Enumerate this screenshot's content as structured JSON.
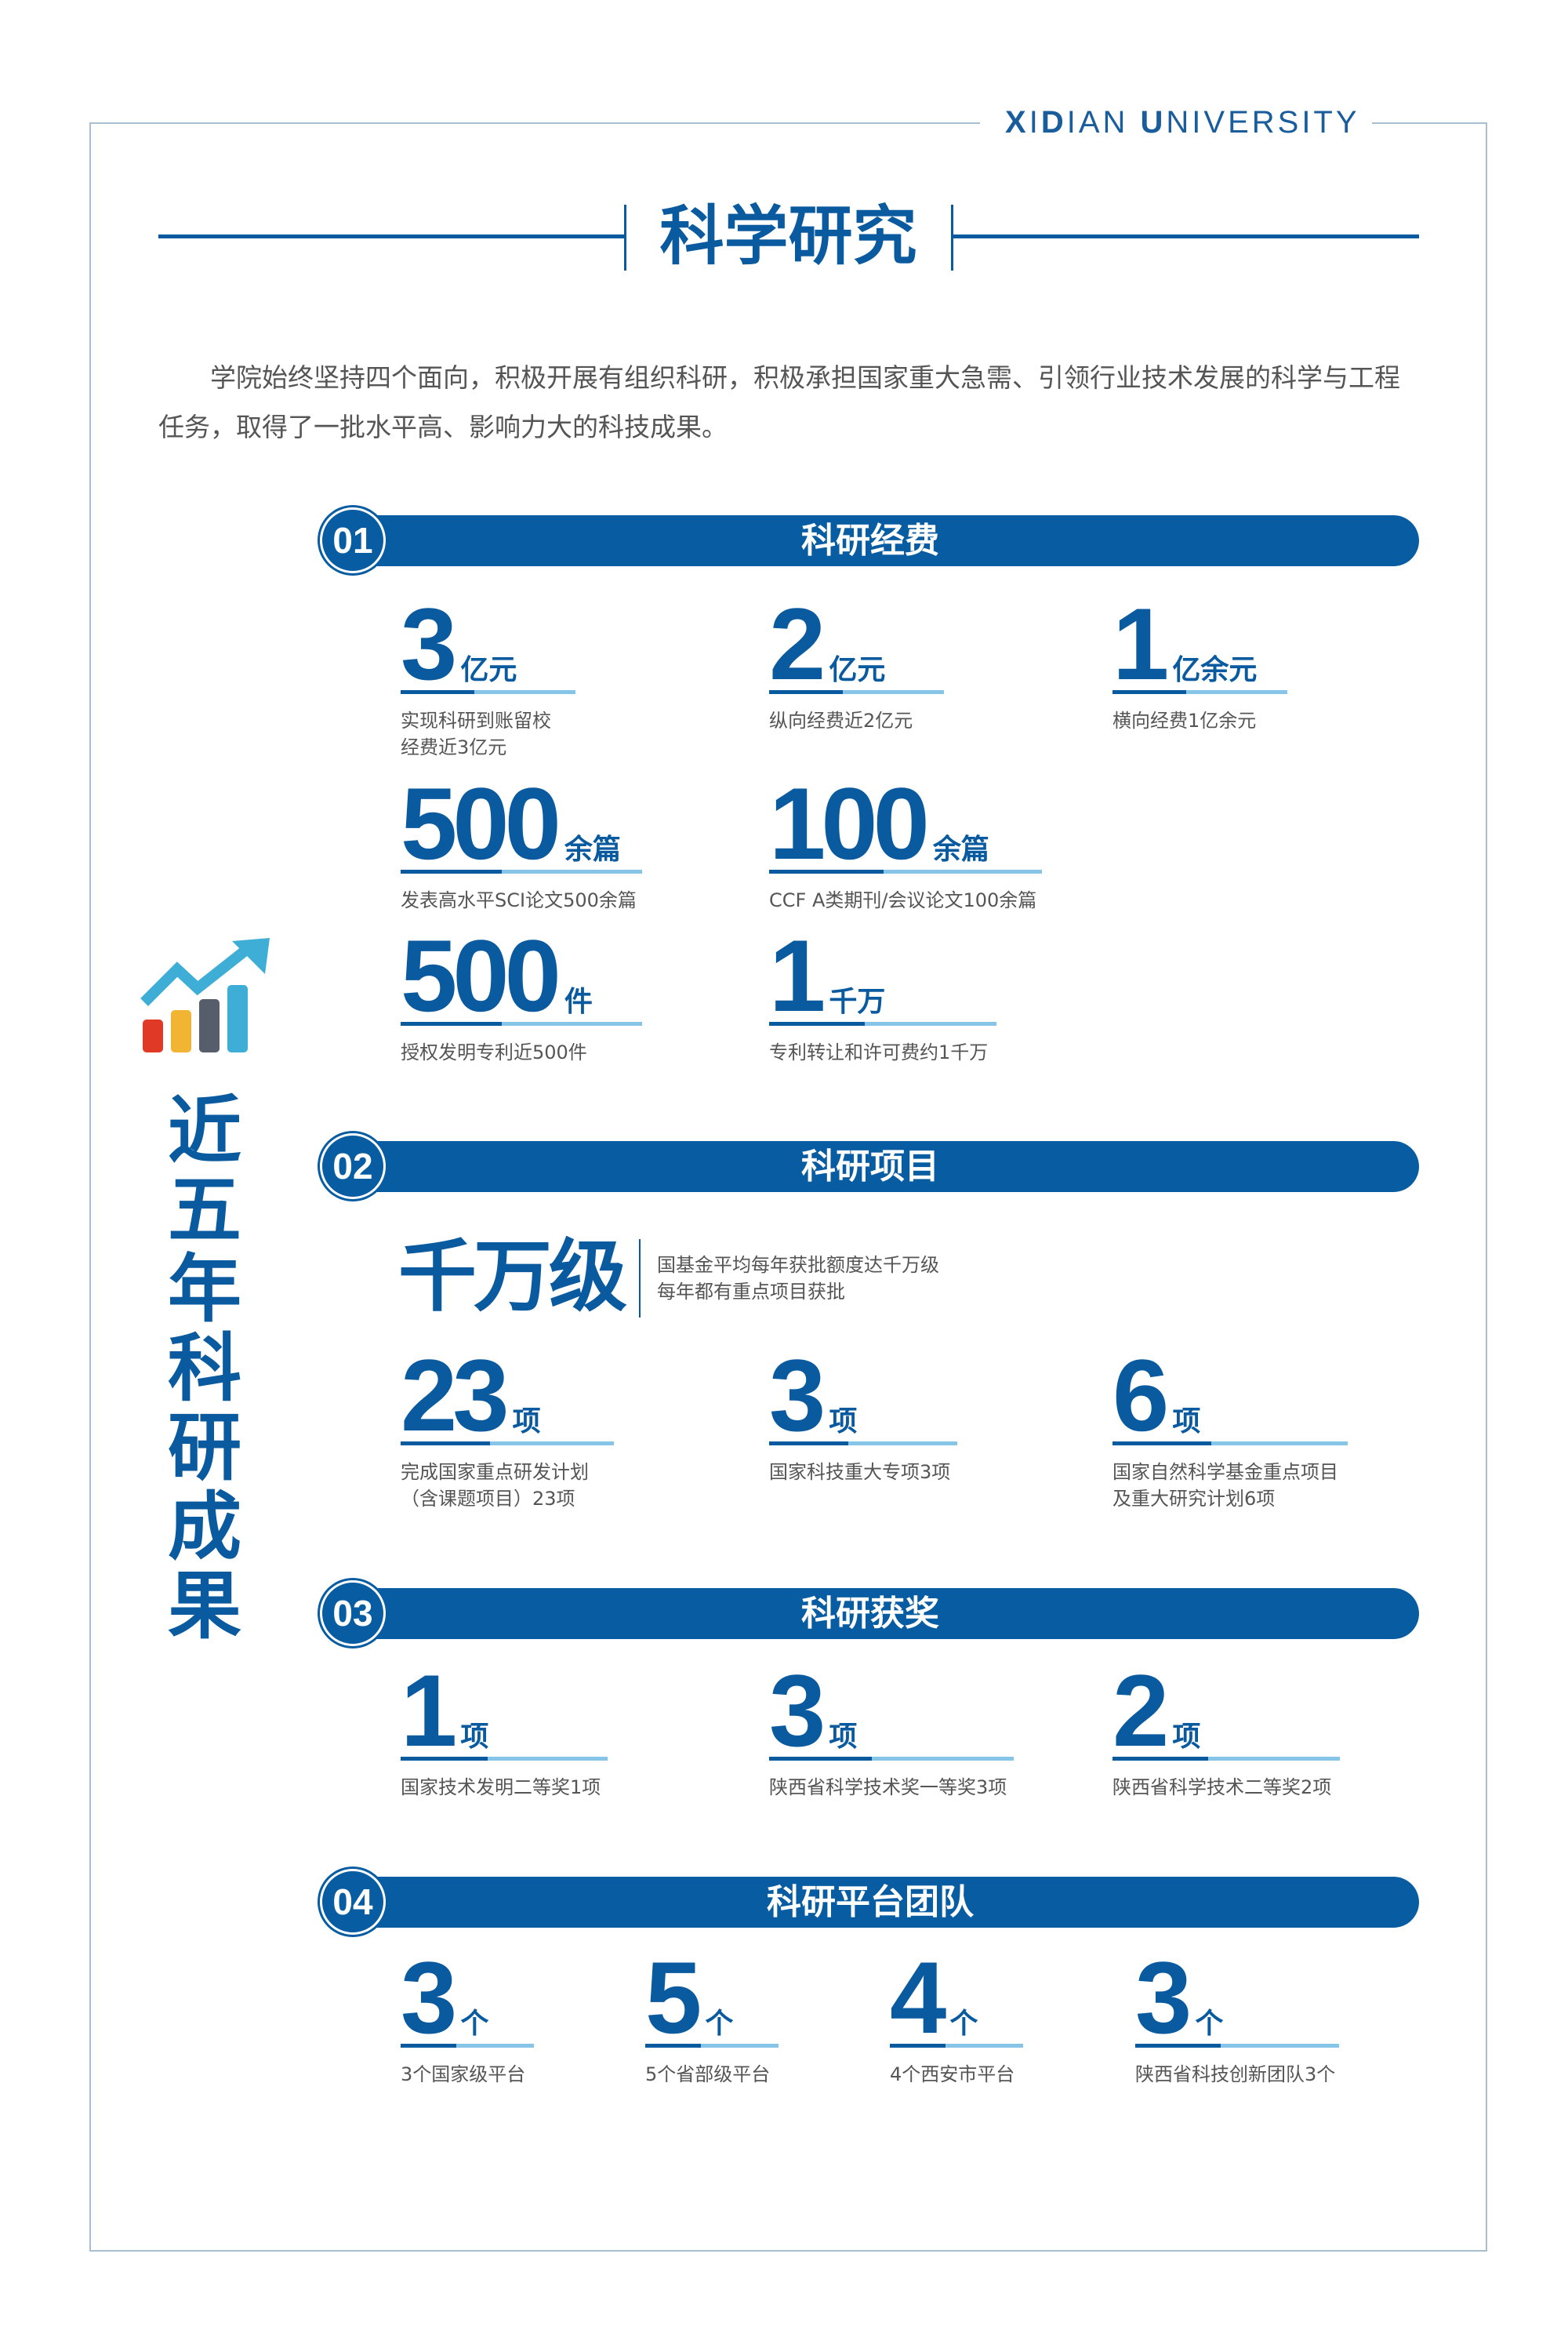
{
  "header": {
    "brand_first": "X",
    "brand_i": "I",
    "brand_d": "D",
    "brand_rest1": "IAN ",
    "brand_u": "U",
    "brand_rest2": "NIVERSITY"
  },
  "title": "科学研究",
  "intro": "学院始终坚持四个面向，积极开展有组织科研，积极承担国家重大急需、引领行业技术发展的科学与工程任务，取得了一批水平高、影响力大的科技成果。",
  "side_title": "近五年科研成果",
  "colors": {
    "primary": "#0a5aa0",
    "accent_light": "#86c4e8",
    "text": "#555555"
  },
  "sections": [
    {
      "num": "01",
      "title": "科研经费",
      "stats": [
        {
          "value": "3",
          "unit": "亿元",
          "desc": [
            "实现科研到账留校",
            "经费近3亿元"
          ]
        },
        {
          "value": "2",
          "unit": "亿元",
          "desc": [
            "纵向经费近2亿元"
          ]
        },
        {
          "value": "1",
          "unit": "亿余元",
          "desc": [
            "横向经费1亿余元"
          ]
        },
        {
          "value": "500",
          "unit": "余篇",
          "desc": [
            "发表高水平SCI论文500余篇"
          ]
        },
        {
          "value": "100",
          "unit": "余篇",
          "desc": [
            "CCF A类期刊/会议论文100余篇"
          ]
        },
        {
          "value": "500",
          "unit": "件",
          "desc": [
            "授权发明专利近500件"
          ]
        },
        {
          "value": "1",
          "unit": "千万",
          "desc": [
            "专利转让和许可费约1千万"
          ]
        }
      ]
    },
    {
      "num": "02",
      "title": "科研项目",
      "highlight": {
        "value": "千万级",
        "desc": [
          "国基金平均每年获批额度达千万级",
          "每年都有重点项目获批"
        ]
      },
      "stats": [
        {
          "value": "23",
          "unit": "项",
          "desc": [
            "完成国家重点研发计划",
            "（含课题项目）23项"
          ]
        },
        {
          "value": "3",
          "unit": "项",
          "desc": [
            "国家科技重大专项3项"
          ]
        },
        {
          "value": "6",
          "unit": "项",
          "desc": [
            "国家自然科学基金重点项目",
            "及重大研究计划6项"
          ]
        }
      ]
    },
    {
      "num": "03",
      "title": "科研获奖",
      "stats": [
        {
          "value": "1",
          "unit": "项",
          "desc": [
            "国家技术发明二等奖1项"
          ]
        },
        {
          "value": "3",
          "unit": "项",
          "desc": [
            "陕西省科学技术奖一等奖3项"
          ]
        },
        {
          "value": "2",
          "unit": "项",
          "desc": [
            "陕西省科学技术二等奖2项"
          ]
        }
      ]
    },
    {
      "num": "04",
      "title": "科研平台团队",
      "stats": [
        {
          "value": "3",
          "unit": "个",
          "desc": [
            "3个国家级平台"
          ]
        },
        {
          "value": "5",
          "unit": "个",
          "desc": [
            "5个省部级平台"
          ]
        },
        {
          "value": "4",
          "unit": "个",
          "desc": [
            "4个西安市平台"
          ]
        },
        {
          "value": "3",
          "unit": "个",
          "desc": [
            "陕西省科技创新团队3个"
          ]
        }
      ]
    }
  ]
}
